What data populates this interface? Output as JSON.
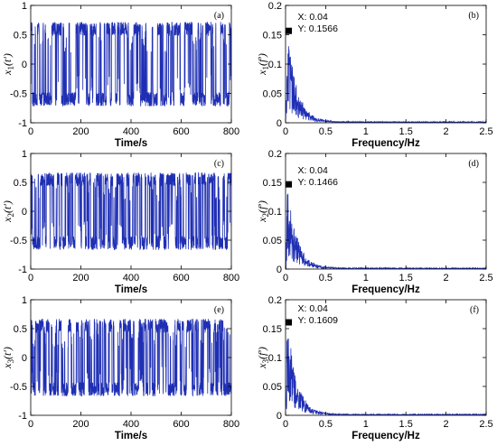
{
  "colors": {
    "series": "#1f2fb4",
    "axis": "#000000",
    "marker": "#000000"
  },
  "chart_data": [
    {
      "type": "line",
      "panel": "(a)",
      "xlabel": "Time/s",
      "ylabel": {
        "base": "x",
        "sub": "1",
        "arg": "(t')"
      },
      "xlim": [
        0,
        800
      ],
      "ylim": [
        -1,
        1
      ],
      "xticks": [
        "0",
        "200",
        "400",
        "600",
        "800"
      ],
      "yticks": [
        "1",
        "0.5",
        "0",
        "-0.5",
        "-1"
      ],
      "signal": {
        "levels": [
          -0.6,
          0.6
        ],
        "amplitude_range": [
          -0.75,
          0.72
        ],
        "noise": 0.12,
        "switches_per_100s": 14
      },
      "grid": false
    },
    {
      "type": "line",
      "panel": "(b)",
      "xlabel": "Frequency/Hz",
      "ylabel": {
        "base": "x",
        "sub": "1",
        "arg": "(f')"
      },
      "xlim": [
        0,
        2.5
      ],
      "ylim": [
        0,
        0.2
      ],
      "xticks": [
        "0",
        "0.5",
        "1",
        "1.5",
        "2",
        "2.5"
      ],
      "yticks": [
        "0.2",
        "0.15",
        "0.1",
        "0.05",
        "0"
      ],
      "spectrum": {
        "peak_x": 0.04,
        "peak_y": 0.1566,
        "decay": 0.12,
        "floor": 0.002
      },
      "datatip": {
        "x_label": "X: 0.04",
        "y_label": "Y: 0.1566",
        "x": 0.04,
        "y": 0.1566
      },
      "grid": false
    },
    {
      "type": "line",
      "panel": "(c)",
      "xlabel": "Time/s",
      "ylabel": {
        "base": "x",
        "sub": "2",
        "arg": "(t')"
      },
      "xlim": [
        0,
        800
      ],
      "ylim": [
        -1,
        1
      ],
      "xticks": [
        "0",
        "200",
        "400",
        "600",
        "800"
      ],
      "yticks": [
        "1",
        "0.5",
        "0",
        "-0.5",
        "-1"
      ],
      "signal": {
        "levels": [
          -0.55,
          0.55
        ],
        "amplitude_range": [
          -0.7,
          0.68
        ],
        "noise": 0.12,
        "switches_per_100s": 16
      },
      "grid": false
    },
    {
      "type": "line",
      "panel": "(d)",
      "xlabel": "Frequency/Hz",
      "ylabel": {
        "base": "x",
        "sub": "2",
        "arg": "(f')"
      },
      "xlim": [
        0,
        2.5
      ],
      "ylim": [
        0,
        0.2
      ],
      "xticks": [
        "0",
        "0.5",
        "1",
        "1.5",
        "2",
        "2.5"
      ],
      "yticks": [
        "0.2",
        "0.15",
        "0.1",
        "0.05",
        "0"
      ],
      "spectrum": {
        "peak_x": 0.04,
        "peak_y": 0.1466,
        "decay": 0.12,
        "floor": 0.002
      },
      "datatip": {
        "x_label": "X: 0.04",
        "y_label": "Y: 0.1466",
        "x": 0.04,
        "y": 0.1466
      },
      "grid": false
    },
    {
      "type": "line",
      "panel": "(e)",
      "xlabel": "Time/s",
      "ylabel": {
        "base": "x",
        "sub": "3",
        "arg": "(t')"
      },
      "xlim": [
        0,
        800
      ],
      "ylim": [
        -1,
        1
      ],
      "xticks": [
        "0",
        "200",
        "400",
        "600",
        "800"
      ],
      "yticks": [
        "1",
        "0.5",
        "0",
        "-0.5",
        "-1"
      ],
      "signal": {
        "levels": [
          -0.55,
          0.55
        ],
        "amplitude_range": [
          -0.7,
          0.7
        ],
        "noise": 0.12,
        "switches_per_100s": 15
      },
      "grid": false
    },
    {
      "type": "line",
      "panel": "(f)",
      "xlabel": "Frequency/Hz",
      "ylabel": {
        "base": "x",
        "sub": "3",
        "arg": "(f')"
      },
      "xlim": [
        0,
        2.5
      ],
      "ylim": [
        0,
        0.2
      ],
      "xticks": [
        "0",
        "0.5",
        "1",
        "1.5",
        "2",
        "2.5"
      ],
      "yticks": [
        "0.2",
        "0.15",
        "0.1",
        "0.05",
        "0"
      ],
      "spectrum": {
        "peak_x": 0.04,
        "peak_y": 0.1609,
        "decay": 0.12,
        "floor": 0.002
      },
      "datatip": {
        "x_label": "X: 0.04",
        "y_label": "Y: 0.1609",
        "x": 0.04,
        "y": 0.1609
      },
      "grid": false
    }
  ]
}
